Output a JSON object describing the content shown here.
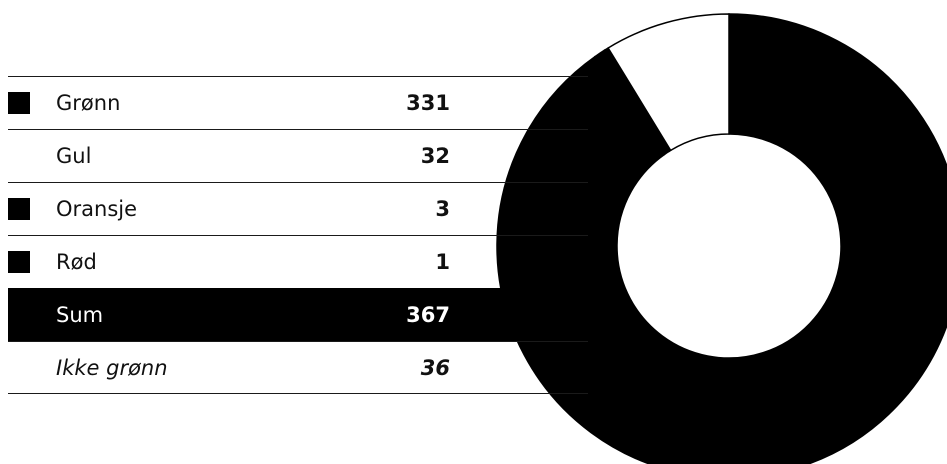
{
  "chart_data": {
    "type": "pie",
    "variant": "donut",
    "categories": [
      "Grønn",
      "Gul",
      "Oransje",
      "Rød"
    ],
    "values": [
      331,
      32,
      3,
      1
    ],
    "colors": [
      "#000000",
      "#ffffff",
      "#000000",
      "#000000"
    ],
    "table": {
      "rows": [
        {
          "label": "Grønn",
          "value": "331",
          "color": "#000000",
          "swatch": true
        },
        {
          "label": "Gul",
          "value": "32",
          "color": "#ffffff",
          "swatch": false
        },
        {
          "label": "Oransje",
          "value": "3",
          "color": "#000000",
          "swatch": true
        },
        {
          "label": "Rød",
          "value": "1",
          "color": "#000000",
          "swatch": true
        }
      ],
      "sum": {
        "label": "Sum",
        "value": "367"
      },
      "extra": {
        "label": "Ikke grønn",
        "value": "36"
      }
    }
  }
}
